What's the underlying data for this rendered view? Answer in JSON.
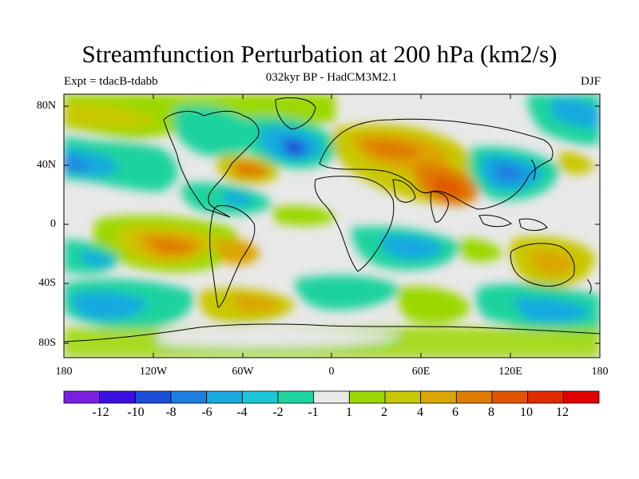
{
  "title": "Streamfunction Perturbation at 200 hPa (km2/s)",
  "subtitle": "032kyr BP - HadCM3M2.1",
  "experiment_label": "Expt = tdacB-tdabb",
  "season_label": "DJF",
  "latitude_ticks": [
    "80N",
    "40N",
    "0",
    "40S",
    "80S"
  ],
  "longitude_ticks": [
    "180",
    "120W",
    "60W",
    "0",
    "60E",
    "120E",
    "180"
  ],
  "colorbar": {
    "labels": [
      "-12",
      "-10",
      "-8",
      "-6",
      "-4",
      "-2",
      "-1",
      "1",
      "2",
      "4",
      "6",
      "8",
      "10",
      "12"
    ],
    "colors": [
      "#7a1fe0",
      "#3a10e0",
      "#1a4ed8",
      "#1e7fe0",
      "#19a9e0",
      "#1cc8d8",
      "#1fd39e",
      "#e8e8e8",
      "#9bd800",
      "#c8c800",
      "#dca600",
      "#e07c00",
      "#e05500",
      "#e02a00",
      "#e00000"
    ]
  },
  "colors": {
    "neutral": "#e8e8e8",
    "coast": "#000000"
  }
}
